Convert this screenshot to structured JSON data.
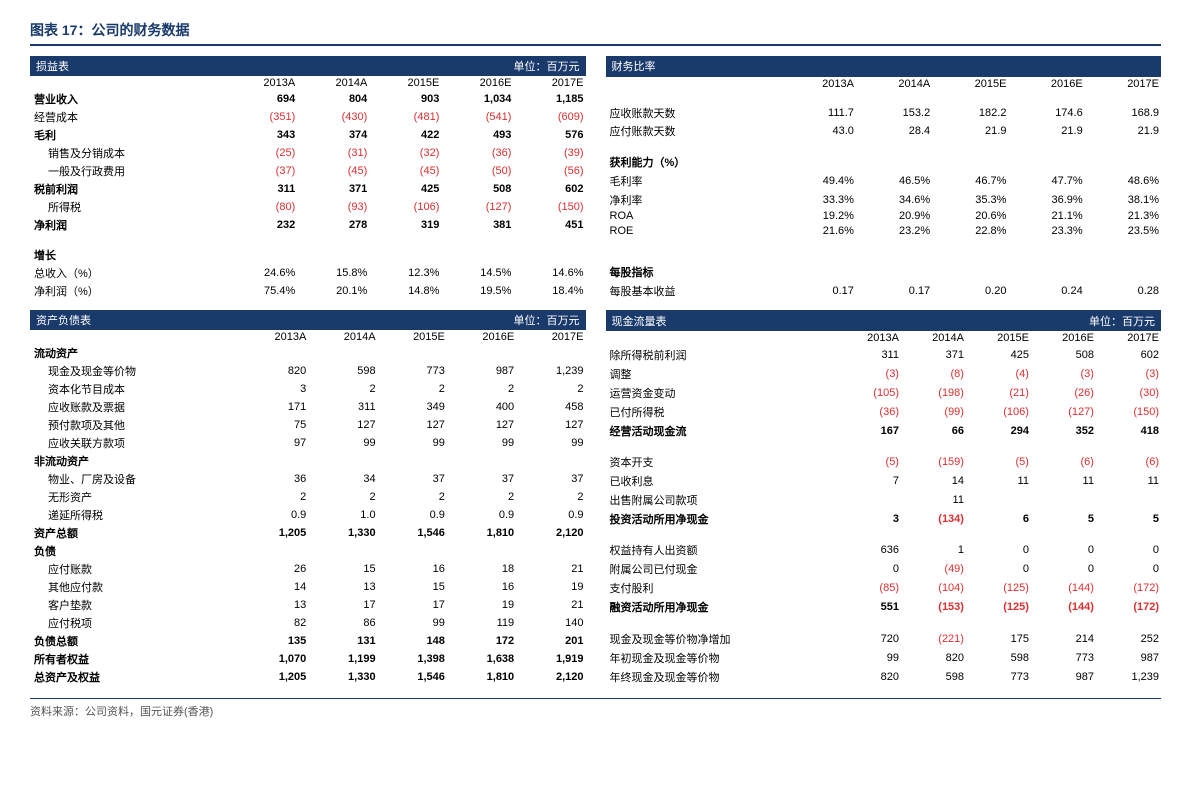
{
  "title": "图表 17：公司的财务数据",
  "footer": "资料来源：公司资料，国元证券(香港)",
  "years": [
    "2013A",
    "2014A",
    "2015E",
    "2016E",
    "2017E"
  ],
  "unit_label": "单位：百万元",
  "colors": {
    "header_bg": "#1a3a6c",
    "header_fg": "#ffffff",
    "negative": "#d93030",
    "text": "#000000",
    "title": "#1a3a6c"
  },
  "income": {
    "title": "损益表",
    "rows": [
      {
        "label": "营业收入",
        "bold": true,
        "vals": [
          "694",
          "804",
          "903",
          "1,034",
          "1,185"
        ]
      },
      {
        "label": "经营成本",
        "neg": true,
        "vals": [
          "(351)",
          "(430)",
          "(481)",
          "(541)",
          "(609)"
        ]
      },
      {
        "label": "毛利",
        "bold": true,
        "vals": [
          "343",
          "374",
          "422",
          "493",
          "576"
        ]
      },
      {
        "label": "销售及分销成本",
        "indent": true,
        "neg": true,
        "vals": [
          "(25)",
          "(31)",
          "(32)",
          "(36)",
          "(39)"
        ]
      },
      {
        "label": "一般及行政费用",
        "indent": true,
        "neg": true,
        "vals": [
          "(37)",
          "(45)",
          "(45)",
          "(50)",
          "(56)"
        ]
      },
      {
        "label": "税前利润",
        "bold": true,
        "vals": [
          "311",
          "371",
          "425",
          "508",
          "602"
        ]
      },
      {
        "label": "所得税",
        "indent": true,
        "neg": true,
        "vals": [
          "(80)",
          "(93)",
          "(106)",
          "(127)",
          "(150)"
        ]
      },
      {
        "label": "净利润",
        "bold": true,
        "vals": [
          "232",
          "278",
          "319",
          "381",
          "451"
        ]
      }
    ],
    "growth_title": "增长",
    "growth": [
      {
        "label": "总收入（%）",
        "vals": [
          "24.6%",
          "15.8%",
          "12.3%",
          "14.5%",
          "14.6%"
        ]
      },
      {
        "label": "净利润（%）",
        "vals": [
          "75.4%",
          "20.1%",
          "14.8%",
          "19.5%",
          "18.4%"
        ]
      }
    ]
  },
  "balance": {
    "title": "资产负债表",
    "rows": [
      {
        "label": "流动资产",
        "bold": true,
        "vals": [
          "",
          "",
          "",
          "",
          ""
        ]
      },
      {
        "label": "现金及现金等价物",
        "indent": true,
        "vals": [
          "820",
          "598",
          "773",
          "987",
          "1,239"
        ]
      },
      {
        "label": "资本化节目成本",
        "indent": true,
        "vals": [
          "3",
          "2",
          "2",
          "2",
          "2"
        ]
      },
      {
        "label": "应收账款及票据",
        "indent": true,
        "vals": [
          "171",
          "311",
          "349",
          "400",
          "458"
        ]
      },
      {
        "label": "预付款项及其他",
        "indent": true,
        "vals": [
          "75",
          "127",
          "127",
          "127",
          "127"
        ]
      },
      {
        "label": "应收关联方款项",
        "indent": true,
        "vals": [
          "97",
          "99",
          "99",
          "99",
          "99"
        ]
      },
      {
        "label": "非流动资产",
        "bold": true,
        "vals": [
          "",
          "",
          "",
          "",
          ""
        ]
      },
      {
        "label": "物业、厂房及设备",
        "indent": true,
        "vals": [
          "36",
          "34",
          "37",
          "37",
          "37"
        ]
      },
      {
        "label": "无形资产",
        "indent": true,
        "vals": [
          "2",
          "2",
          "2",
          "2",
          "2"
        ]
      },
      {
        "label": "递延所得税",
        "indent": true,
        "vals": [
          "0.9",
          "1.0",
          "0.9",
          "0.9",
          "0.9"
        ]
      },
      {
        "label": "资产总额",
        "bold": true,
        "vals": [
          "1,205",
          "1,330",
          "1,546",
          "1,810",
          "2,120"
        ]
      },
      {
        "label": "负债",
        "bold": true,
        "vals": [
          "",
          "",
          "",
          "",
          ""
        ]
      },
      {
        "label": "应付账款",
        "indent": true,
        "vals": [
          "26",
          "15",
          "16",
          "18",
          "21"
        ]
      },
      {
        "label": "其他应付款",
        "indent": true,
        "vals": [
          "14",
          "13",
          "15",
          "16",
          "19"
        ]
      },
      {
        "label": "客户垫款",
        "indent": true,
        "vals": [
          "13",
          "17",
          "17",
          "19",
          "21"
        ]
      },
      {
        "label": "应付税项",
        "indent": true,
        "vals": [
          "82",
          "86",
          "99",
          "119",
          "140"
        ]
      },
      {
        "label": "负债总额",
        "bold": true,
        "vals": [
          "135",
          "131",
          "148",
          "172",
          "201"
        ]
      },
      {
        "label": "所有者权益",
        "bold": true,
        "vals": [
          "1,070",
          "1,199",
          "1,398",
          "1,638",
          "1,919"
        ]
      },
      {
        "label": "总资产及权益",
        "bold": true,
        "vals": [
          "1,205",
          "1,330",
          "1,546",
          "1,810",
          "2,120"
        ]
      }
    ]
  },
  "ratios": {
    "title": "财务比率",
    "rows1": [
      {
        "label": "应收账款天数",
        "vals": [
          "111.7",
          "153.2",
          "182.2",
          "174.6",
          "168.9"
        ]
      },
      {
        "label": "应付账款天数",
        "vals": [
          "43.0",
          "28.4",
          "21.9",
          "21.9",
          "21.9"
        ]
      }
    ],
    "profit_title": "获利能力（%）",
    "rows2": [
      {
        "label": "毛利率",
        "vals": [
          "49.4%",
          "46.5%",
          "46.7%",
          "47.7%",
          "48.6%"
        ]
      },
      {
        "label": "净利率",
        "vals": [
          "33.3%",
          "34.6%",
          "35.3%",
          "36.9%",
          "38.1%"
        ]
      },
      {
        "label": "ROA",
        "vals": [
          "19.2%",
          "20.9%",
          "20.6%",
          "21.1%",
          "21.3%"
        ]
      },
      {
        "label": "ROE",
        "vals": [
          "21.6%",
          "23.2%",
          "22.8%",
          "23.3%",
          "23.5%"
        ]
      }
    ],
    "eps_title": "每股指标",
    "eps": {
      "label": "每股基本收益",
      "vals": [
        "0.17",
        "0.17",
        "0.20",
        "0.24",
        "0.28"
      ]
    }
  },
  "cashflow": {
    "title": "现金流量表",
    "rows": [
      {
        "label": "除所得税前利润",
        "vals": [
          "311",
          "371",
          "425",
          "508",
          "602"
        ]
      },
      {
        "label": "调整",
        "neg": true,
        "vals": [
          "(3)",
          "(8)",
          "(4)",
          "(3)",
          "(3)"
        ]
      },
      {
        "label": "运营资金变动",
        "neg": true,
        "vals": [
          "(105)",
          "(198)",
          "(21)",
          "(26)",
          "(30)"
        ]
      },
      {
        "label": "已付所得税",
        "neg": true,
        "vals": [
          "(36)",
          "(99)",
          "(106)",
          "(127)",
          "(150)"
        ]
      },
      {
        "label": "经营活动现金流",
        "bold": true,
        "vals": [
          "167",
          "66",
          "294",
          "352",
          "418"
        ]
      }
    ],
    "invest": [
      {
        "label": "资本开支",
        "neg": true,
        "vals": [
          "(5)",
          "(159)",
          "(5)",
          "(6)",
          "(6)"
        ]
      },
      {
        "label": "已收利息",
        "vals": [
          "7",
          "14",
          "11",
          "11",
          "11"
        ]
      },
      {
        "label": "出售附属公司款项",
        "vals": [
          "",
          "11",
          "",
          "",
          ""
        ]
      },
      {
        "label": "投资活动所用净现金",
        "bold": true,
        "mixed": true,
        "vals": [
          "3",
          "(134)",
          "6",
          "5",
          "5"
        ]
      }
    ],
    "finance": [
      {
        "label": "权益持有人出资额",
        "vals": [
          "636",
          "1",
          "0",
          "0",
          "0"
        ]
      },
      {
        "label": "附属公司已付现金",
        "mixed": true,
        "vals": [
          "0",
          "(49)",
          "0",
          "0",
          "0"
        ]
      },
      {
        "label": "支付股利",
        "neg": true,
        "vals": [
          "(85)",
          "(104)",
          "(125)",
          "(144)",
          "(172)"
        ]
      },
      {
        "label": "融资活动所用净现金",
        "bold": true,
        "mixed": true,
        "vals": [
          "551",
          "(153)",
          "(125)",
          "(144)",
          "(172)"
        ]
      }
    ],
    "cash": [
      {
        "label": "现金及现金等价物净增加",
        "mixed": true,
        "vals": [
          "720",
          "(221)",
          "175",
          "214",
          "252"
        ]
      },
      {
        "label": "年初现金及现金等价物",
        "vals": [
          "99",
          "820",
          "598",
          "773",
          "987"
        ]
      },
      {
        "label": "年终现金及现金等价物",
        "vals": [
          "820",
          "598",
          "773",
          "987",
          "1,239"
        ]
      }
    ]
  }
}
